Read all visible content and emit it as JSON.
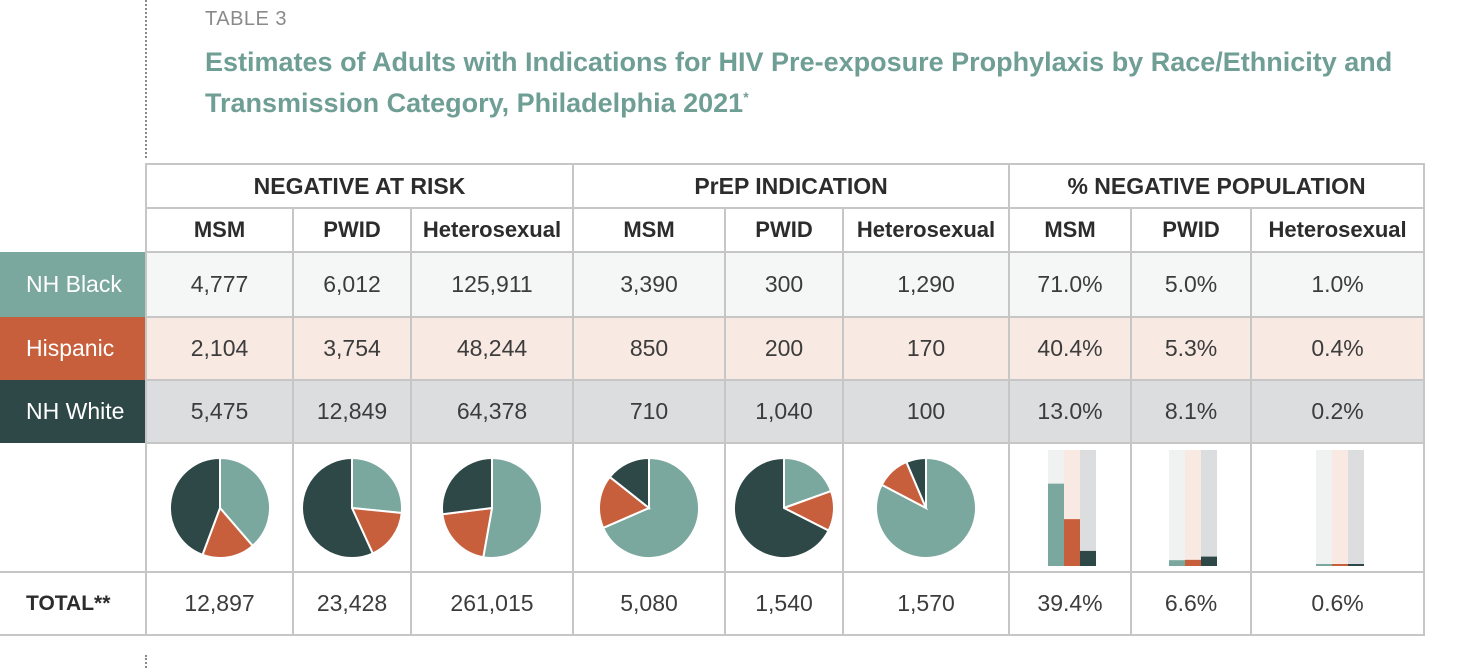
{
  "header": {
    "table_label": "TABLE 3",
    "title": "Estimates of Adults with Indications for HIV Pre-exposure Prophylaxis by Race/Ethnicity and Transmission Category, Philadelphia 2021",
    "title_mark": "*"
  },
  "groups": [
    "NEGATIVE AT RISK",
    "PrEP INDICATION",
    "% NEGATIVE POPULATION"
  ],
  "subheaders": [
    "MSM",
    "PWID",
    "Heterosexual",
    "MSM",
    "PWID",
    "Heterosexual",
    "MSM",
    "PWID",
    "Heterosexual"
  ],
  "rows": [
    {
      "label": "NH Black",
      "values": [
        "4,777",
        "6,012",
        "125,911",
        "3,390",
        "300",
        "1,290",
        "71.0%",
        "5.0%",
        "1.0%"
      ]
    },
    {
      "label": "Hispanic",
      "values": [
        "2,104",
        "3,754",
        "48,244",
        "850",
        "200",
        "170",
        "40.4%",
        "5.3%",
        "0.4%"
      ]
    },
    {
      "label": "NH White",
      "values": [
        "5,475",
        "12,849",
        "64,378",
        "710",
        "1,040",
        "100",
        "13.0%",
        "8.1%",
        "0.2%"
      ]
    }
  ],
  "total": {
    "label": "TOTAL**",
    "values": [
      "12,897",
      "23,428",
      "261,015",
      "5,080",
      "1,540",
      "1,570",
      "39.4%",
      "6.6%",
      "0.6%"
    ]
  },
  "colors": {
    "nh_black": "#7aa79e",
    "hispanic": "#c85f3c",
    "nh_white": "#2e4848",
    "title": "#6e9e94"
  },
  "chart_data": {
    "type": "table",
    "pies": [
      {
        "column": "NEGATIVE AT RISK - MSM",
        "values": [
          4777,
          2104,
          5475
        ]
      },
      {
        "column": "NEGATIVE AT RISK - PWID",
        "values": [
          6012,
          3754,
          12849
        ]
      },
      {
        "column": "NEGATIVE AT RISK - Heterosexual",
        "values": [
          125911,
          48244,
          64378
        ]
      },
      {
        "column": "PrEP INDICATION - MSM",
        "values": [
          3390,
          850,
          710
        ]
      },
      {
        "column": "PrEP INDICATION - PWID",
        "values": [
          300,
          200,
          1040
        ]
      },
      {
        "column": "PrEP INDICATION - Heterosexual",
        "values": [
          1290,
          170,
          100
        ]
      }
    ],
    "bars": [
      {
        "column": "% NEGATIVE POPULATION - MSM",
        "values": [
          71.0,
          40.4,
          13.0
        ]
      },
      {
        "column": "% NEGATIVE POPULATION - PWID",
        "values": [
          5.0,
          5.3,
          8.1
        ]
      },
      {
        "column": "% NEGATIVE POPULATION - Heterosexual",
        "values": [
          1.0,
          0.4,
          0.2
        ]
      }
    ],
    "bar_scale_max": 100,
    "series_order": [
      "NH Black",
      "Hispanic",
      "NH White"
    ]
  }
}
